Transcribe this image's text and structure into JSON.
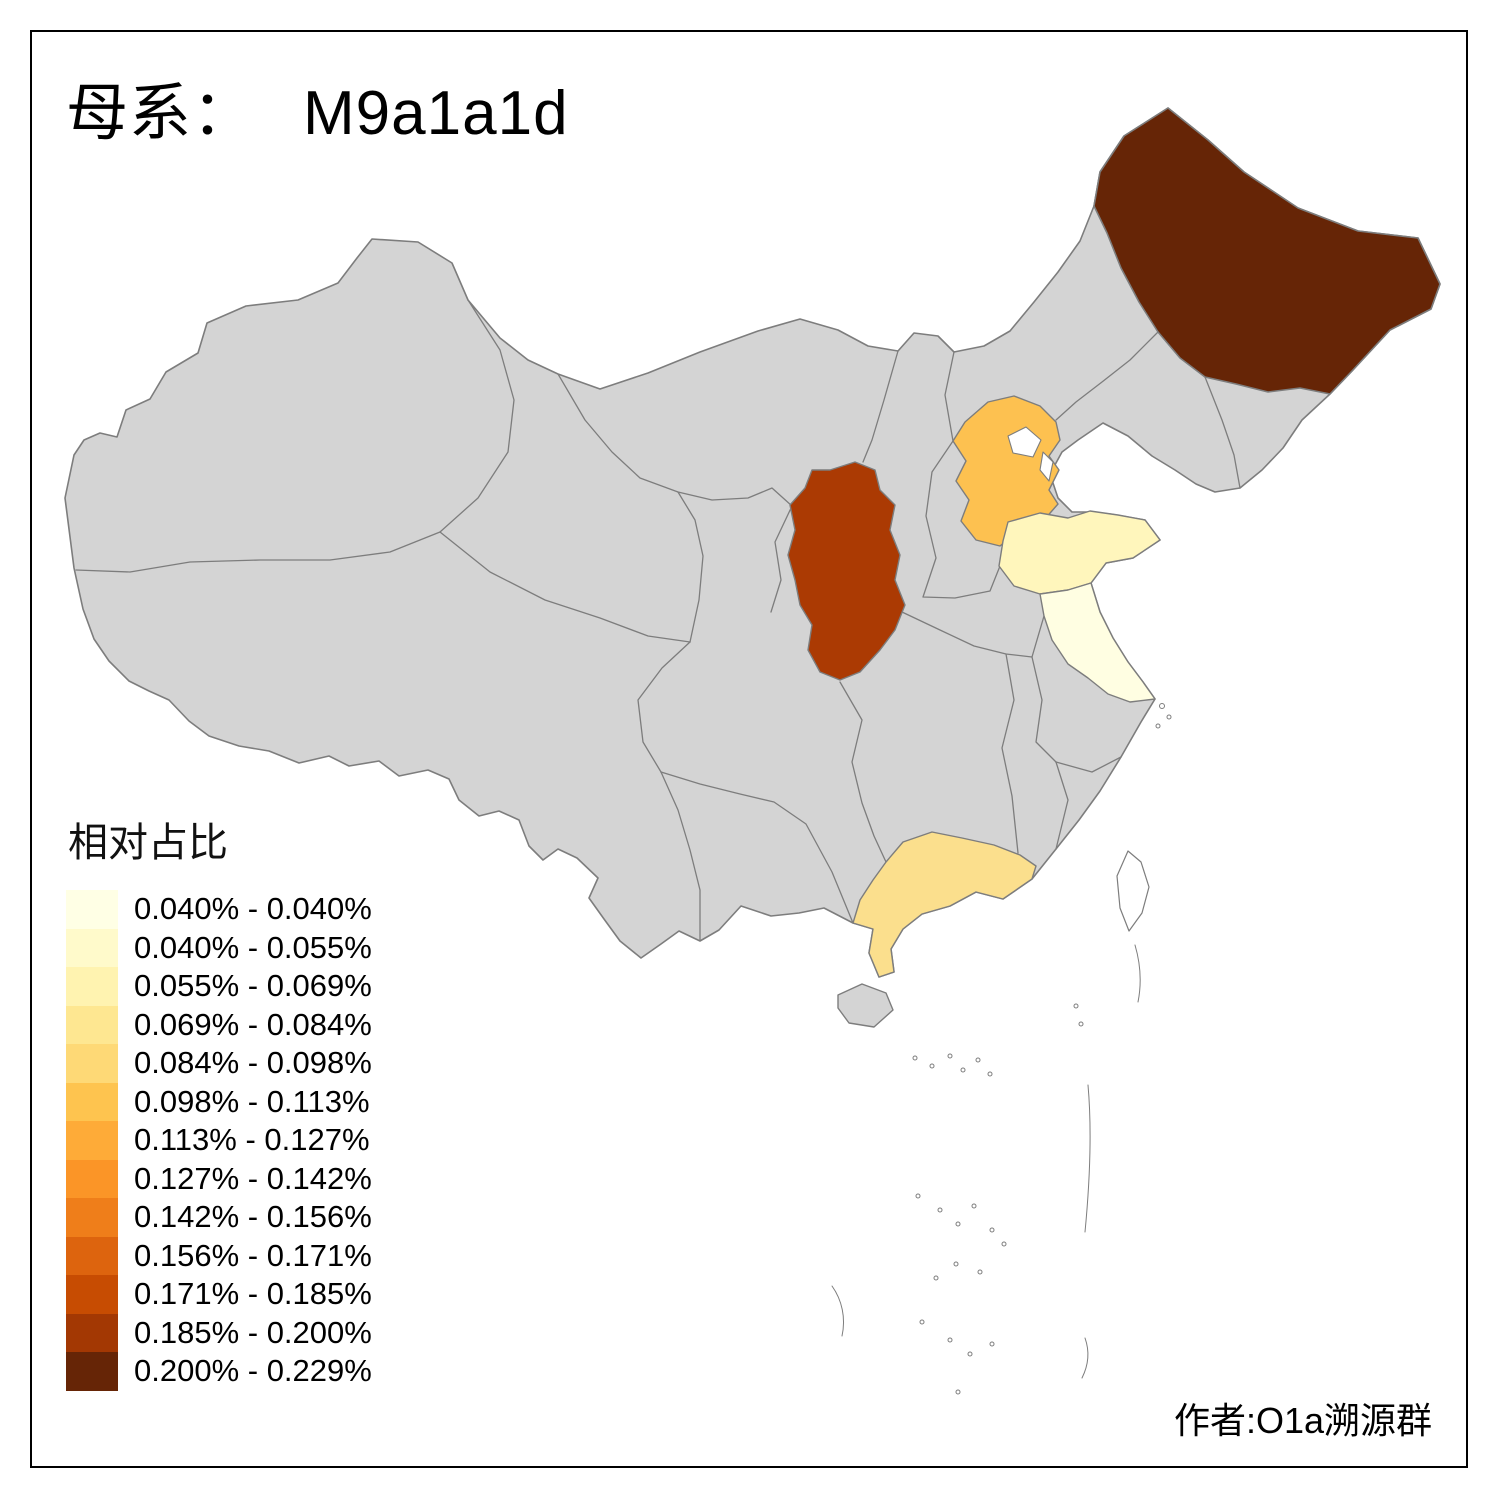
{
  "title": {
    "prefix": "母系：",
    "value": "M9a1a1d"
  },
  "legend": {
    "title": "相对占比",
    "bins": [
      {
        "range": "0.040% - 0.040%",
        "color": "#FFFFE5"
      },
      {
        "range": "0.040% - 0.055%",
        "color": "#FFFACB"
      },
      {
        "range": "0.055% - 0.069%",
        "color": "#FFF3B0"
      },
      {
        "range": "0.069% - 0.084%",
        "color": "#FEE791"
      },
      {
        "range": "0.084% - 0.098%",
        "color": "#FED976"
      },
      {
        "range": "0.098% - 0.113%",
        "color": "#FEC44F"
      },
      {
        "range": "0.113% - 0.127%",
        "color": "#FEAB38"
      },
      {
        "range": "0.127% - 0.142%",
        "color": "#FB9527"
      },
      {
        "range": "0.142% - 0.156%",
        "color": "#EF7E1A"
      },
      {
        "range": "0.156% - 0.171%",
        "color": "#DD640E"
      },
      {
        "range": "0.171% - 0.185%",
        "color": "#C74C02"
      },
      {
        "range": "0.185% - 0.200%",
        "color": "#A33803"
      },
      {
        "range": "0.200% - 0.229%",
        "color": "#662506"
      }
    ]
  },
  "credit": "作者:O1a溯源群",
  "map": {
    "land_fill": "#D4D4D4",
    "border_color": "#7D7D7D",
    "sea_fill": "#FFFFFF",
    "regions": [
      {
        "id": "heilongjiang",
        "color": "#662506"
      },
      {
        "id": "shaanxi",
        "color": "#AB3A03"
      },
      {
        "id": "hebei",
        "color": "#FDC150"
      },
      {
        "id": "shandong",
        "color": "#FFF6BC"
      },
      {
        "id": "jiangsu",
        "color": "#FFFEE2"
      },
      {
        "id": "guangdong",
        "color": "#FBDF8D"
      }
    ]
  }
}
